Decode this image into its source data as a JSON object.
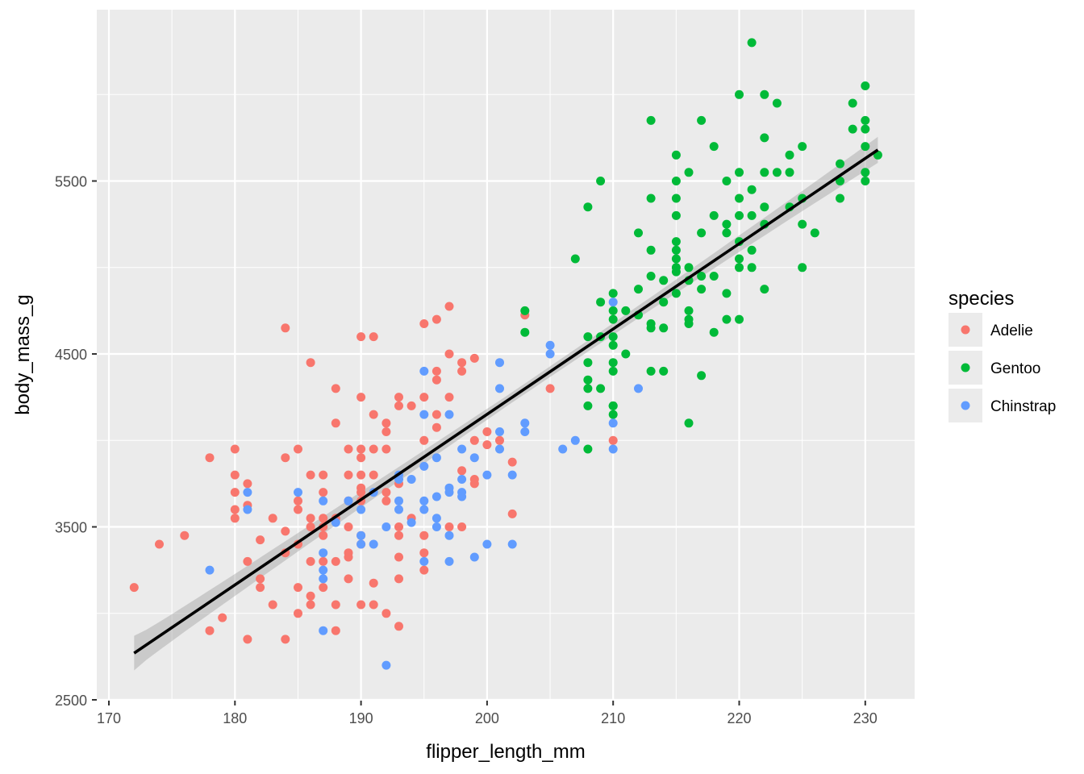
{
  "chart_data": {
    "type": "scatter",
    "xlabel": "flipper_length_mm",
    "ylabel": "body_mass_g",
    "xlim": [
      168,
      234
    ],
    "ylim": [
      2500,
      6500
    ],
    "x_ticks": [
      170,
      180,
      190,
      200,
      210,
      220,
      230
    ],
    "y_ticks": [
      2500,
      3500,
      4500,
      5500
    ],
    "grid": true,
    "legend": {
      "title": "species",
      "position": "right"
    },
    "trend_line": {
      "type": "linear",
      "color": "#000000",
      "start": [
        172,
        2770
      ],
      "end": [
        231,
        5680
      ],
      "ribbon": {
        "color": "#999999",
        "start_halfwidth": 100,
        "mid_halfwidth": 30,
        "end_halfwidth": 75
      }
    },
    "series": [
      {
        "name": "Adelie",
        "color": "#F8766D",
        "points": [
          [
            172,
            3150
          ],
          [
            174,
            3400
          ],
          [
            176,
            3450
          ],
          [
            178,
            3900
          ],
          [
            178,
            2900
          ],
          [
            179,
            2975
          ],
          [
            180,
            3950
          ],
          [
            180,
            3800
          ],
          [
            180,
            3700
          ],
          [
            180,
            3600
          ],
          [
            180,
            3550
          ],
          [
            181,
            3750
          ],
          [
            181,
            3625
          ],
          [
            181,
            3300
          ],
          [
            181,
            2850
          ],
          [
            182,
            3425
          ],
          [
            182,
            3200
          ],
          [
            182,
            3150
          ],
          [
            183,
            3550
          ],
          [
            183,
            3050
          ],
          [
            184,
            4650
          ],
          [
            184,
            3900
          ],
          [
            184,
            3475
          ],
          [
            184,
            3350
          ],
          [
            184,
            2850
          ],
          [
            185,
            3950
          ],
          [
            185,
            3650
          ],
          [
            185,
            3600
          ],
          [
            185,
            3400
          ],
          [
            185,
            3150
          ],
          [
            185,
            3000
          ],
          [
            186,
            4450
          ],
          [
            186,
            3800
          ],
          [
            186,
            3550
          ],
          [
            186,
            3500
          ],
          [
            186,
            3300
          ],
          [
            186,
            3100
          ],
          [
            186,
            3050
          ],
          [
            187,
            3800
          ],
          [
            187,
            3700
          ],
          [
            187,
            3550
          ],
          [
            187,
            3450
          ],
          [
            187,
            3300
          ],
          [
            187,
            3150
          ],
          [
            187,
            3500
          ],
          [
            188,
            4300
          ],
          [
            188,
            4100
          ],
          [
            188,
            3550
          ],
          [
            188,
            3300
          ],
          [
            188,
            3050
          ],
          [
            188,
            2900
          ],
          [
            189,
            3950
          ],
          [
            189,
            3800
          ],
          [
            189,
            3650
          ],
          [
            189,
            3500
          ],
          [
            189,
            3350
          ],
          [
            189,
            3200
          ],
          [
            189,
            3325
          ],
          [
            190,
            4600
          ],
          [
            190,
            4250
          ],
          [
            190,
            3950
          ],
          [
            190,
            3900
          ],
          [
            190,
            3800
          ],
          [
            190,
            3725
          ],
          [
            190,
            3700
          ],
          [
            190,
            3650
          ],
          [
            190,
            3400
          ],
          [
            190,
            3050
          ],
          [
            190,
            3450
          ],
          [
            191,
            4600
          ],
          [
            191,
            4150
          ],
          [
            191,
            3950
          ],
          [
            191,
            3800
          ],
          [
            191,
            3175
          ],
          [
            191,
            3050
          ],
          [
            192,
            4100
          ],
          [
            192,
            4050
          ],
          [
            192,
            3950
          ],
          [
            192,
            3700
          ],
          [
            192,
            3000
          ],
          [
            192,
            3650
          ],
          [
            193,
            4250
          ],
          [
            193,
            4200
          ],
          [
            193,
            3750
          ],
          [
            193,
            3500
          ],
          [
            193,
            3450
          ],
          [
            193,
            3325
          ],
          [
            193,
            3200
          ],
          [
            193,
            2925
          ],
          [
            194,
            4200
          ],
          [
            194,
            3550
          ],
          [
            195,
            4675
          ],
          [
            195,
            4250
          ],
          [
            195,
            4000
          ],
          [
            195,
            3450
          ],
          [
            195,
            3350
          ],
          [
            195,
            3250
          ],
          [
            196,
            4700
          ],
          [
            196,
            4400
          ],
          [
            196,
            4350
          ],
          [
            196,
            4150
          ],
          [
            196,
            4075
          ],
          [
            197,
            4775
          ],
          [
            197,
            4500
          ],
          [
            197,
            4250
          ],
          [
            197,
            3500
          ],
          [
            198,
            4450
          ],
          [
            198,
            4400
          ],
          [
            198,
            3825
          ],
          [
            198,
            3500
          ],
          [
            199,
            4475
          ],
          [
            199,
            3775
          ],
          [
            199,
            3750
          ],
          [
            199,
            4000
          ],
          [
            200,
            4050
          ],
          [
            200,
            3975
          ],
          [
            201,
            4000
          ],
          [
            202,
            3875
          ],
          [
            202,
            3575
          ],
          [
            203,
            4725
          ],
          [
            205,
            4300
          ],
          [
            210,
            4000
          ]
        ]
      },
      {
        "name": "Gentoo",
        "color": "#00BA38",
        "points": [
          [
            203,
            4750
          ],
          [
            203,
            4625
          ],
          [
            207,
            5050
          ],
          [
            208,
            5350
          ],
          [
            208,
            4600
          ],
          [
            208,
            4450
          ],
          [
            208,
            4350
          ],
          [
            208,
            4300
          ],
          [
            208,
            4200
          ],
          [
            208,
            3950
          ],
          [
            209,
            5500
          ],
          [
            209,
            4800
          ],
          [
            209,
            4600
          ],
          [
            209,
            4300
          ],
          [
            210,
            4850
          ],
          [
            210,
            4750
          ],
          [
            210,
            4700
          ],
          [
            210,
            4600
          ],
          [
            210,
            4550
          ],
          [
            210,
            4450
          ],
          [
            210,
            4400
          ],
          [
            210,
            4200
          ],
          [
            210,
            4150
          ],
          [
            210,
            4200
          ],
          [
            211,
            4750
          ],
          [
            211,
            4500
          ],
          [
            212,
            5200
          ],
          [
            212,
            4875
          ],
          [
            212,
            4725
          ],
          [
            213,
            5850
          ],
          [
            213,
            5400
          ],
          [
            213,
            5100
          ],
          [
            213,
            4950
          ],
          [
            213,
            4650
          ],
          [
            213,
            4400
          ],
          [
            213,
            4675
          ],
          [
            214,
            4925
          ],
          [
            214,
            4650
          ],
          [
            214,
            4400
          ],
          [
            214,
            4800
          ],
          [
            215,
            5650
          ],
          [
            215,
            5500
          ],
          [
            215,
            5400
          ],
          [
            215,
            5300
          ],
          [
            215,
            5150
          ],
          [
            215,
            5100
          ],
          [
            215,
            5050
          ],
          [
            215,
            5000
          ],
          [
            215,
            4975
          ],
          [
            215,
            4850
          ],
          [
            216,
            5550
          ],
          [
            216,
            5000
          ],
          [
            216,
            4925
          ],
          [
            216,
            4750
          ],
          [
            216,
            4700
          ],
          [
            216,
            4675
          ],
          [
            216,
            4100
          ],
          [
            217,
            5850
          ],
          [
            217,
            5200
          ],
          [
            217,
            4950
          ],
          [
            217,
            4875
          ],
          [
            217,
            4375
          ],
          [
            218,
            5700
          ],
          [
            218,
            5300
          ],
          [
            218,
            4950
          ],
          [
            218,
            4625
          ],
          [
            219,
            5500
          ],
          [
            219,
            5250
          ],
          [
            219,
            5200
          ],
          [
            219,
            4850
          ],
          [
            219,
            4700
          ],
          [
            220,
            6000
          ],
          [
            220,
            5550
          ],
          [
            220,
            5400
          ],
          [
            220,
            5300
          ],
          [
            220,
            5150
          ],
          [
            220,
            5050
          ],
          [
            220,
            5000
          ],
          [
            220,
            4700
          ],
          [
            221,
            6300
          ],
          [
            221,
            5450
          ],
          [
            221,
            5300
          ],
          [
            221,
            5100
          ],
          [
            221,
            5000
          ],
          [
            222,
            6000
          ],
          [
            222,
            5750
          ],
          [
            222,
            5550
          ],
          [
            222,
            5350
          ],
          [
            222,
            5250
          ],
          [
            222,
            4875
          ],
          [
            223,
            5950
          ],
          [
            223,
            5550
          ],
          [
            224,
            5650
          ],
          [
            224,
            5550
          ],
          [
            224,
            5350
          ],
          [
            225,
            5700
          ],
          [
            225,
            5400
          ],
          [
            225,
            5250
          ],
          [
            225,
            5000
          ],
          [
            226,
            5200
          ],
          [
            228,
            5600
          ],
          [
            228,
            5500
          ],
          [
            228,
            5400
          ],
          [
            229,
            5950
          ],
          [
            229,
            5800
          ],
          [
            230,
            6050
          ],
          [
            230,
            5850
          ],
          [
            230,
            5800
          ],
          [
            230,
            5700
          ],
          [
            230,
            5550
          ],
          [
            230,
            5500
          ],
          [
            231,
            5650
          ]
        ]
      },
      {
        "name": "Chinstrap",
        "color": "#619CFF",
        "points": [
          [
            178,
            3250
          ],
          [
            181,
            3700
          ],
          [
            181,
            3600
          ],
          [
            185,
            3700
          ],
          [
            187,
            3650
          ],
          [
            187,
            3350
          ],
          [
            187,
            3250
          ],
          [
            187,
            3200
          ],
          [
            187,
            2900
          ],
          [
            188,
            3525
          ],
          [
            189,
            3650
          ],
          [
            190,
            3600
          ],
          [
            190,
            3450
          ],
          [
            190,
            3400
          ],
          [
            191,
            3400
          ],
          [
            191,
            3700
          ],
          [
            192,
            3500
          ],
          [
            192,
            2700
          ],
          [
            193,
            3800
          ],
          [
            193,
            3775
          ],
          [
            193,
            3650
          ],
          [
            193,
            3600
          ],
          [
            194,
            3775
          ],
          [
            194,
            3525
          ],
          [
            195,
            4400
          ],
          [
            195,
            4150
          ],
          [
            195,
            3850
          ],
          [
            195,
            3650
          ],
          [
            195,
            3600
          ],
          [
            195,
            3300
          ],
          [
            196,
            3900
          ],
          [
            196,
            3675
          ],
          [
            196,
            3550
          ],
          [
            196,
            3500
          ],
          [
            197,
            4150
          ],
          [
            197,
            3725
          ],
          [
            197,
            3700
          ],
          [
            197,
            3450
          ],
          [
            197,
            3300
          ],
          [
            198,
            3950
          ],
          [
            198,
            3775
          ],
          [
            198,
            3700
          ],
          [
            198,
            3675
          ],
          [
            199,
            3900
          ],
          [
            199,
            3325
          ],
          [
            200,
            3800
          ],
          [
            200,
            3400
          ],
          [
            201,
            4450
          ],
          [
            201,
            4300
          ],
          [
            201,
            4050
          ],
          [
            201,
            3950
          ],
          [
            202,
            3800
          ],
          [
            202,
            3400
          ],
          [
            203,
            4100
          ],
          [
            203,
            4050
          ],
          [
            205,
            4550
          ],
          [
            205,
            4500
          ],
          [
            206,
            3950
          ],
          [
            207,
            4000
          ],
          [
            210,
            4800
          ],
          [
            210,
            4100
          ],
          [
            210,
            3950
          ],
          [
            212,
            4300
          ]
        ]
      }
    ]
  }
}
